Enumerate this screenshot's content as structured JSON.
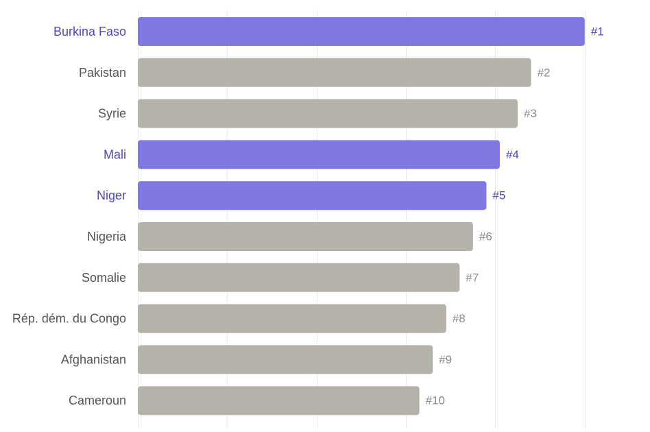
{
  "chart_data": {
    "type": "bar",
    "orientation": "horizontal",
    "title": "",
    "xlabel": "",
    "ylabel": "",
    "categories": [
      "Burkina Faso",
      "Pakistan",
      "Syrie",
      "Mali",
      "Niger",
      "Nigeria",
      "Somalie",
      "Rép. dém. du Congo",
      "Afghanistan",
      "Cameroun"
    ],
    "values": [
      100,
      88,
      85,
      81,
      78,
      75,
      72,
      69,
      66,
      63
    ],
    "ranks": [
      "#1",
      "#2",
      "#3",
      "#4",
      "#5",
      "#6",
      "#7",
      "#8",
      "#9",
      "#10"
    ],
    "highlighted": [
      true,
      false,
      false,
      true,
      true,
      false,
      false,
      false,
      false,
      false
    ],
    "xlim": [
      0,
      110
    ],
    "grid": true,
    "colors": {
      "highlight_bar": "#7e78e0",
      "default_bar": "#b5b2aa",
      "highlight_text": "#5146b8",
      "default_label_text": "#555555",
      "default_rank_text": "#8a8a8a",
      "grid": "#ebebeb"
    }
  }
}
